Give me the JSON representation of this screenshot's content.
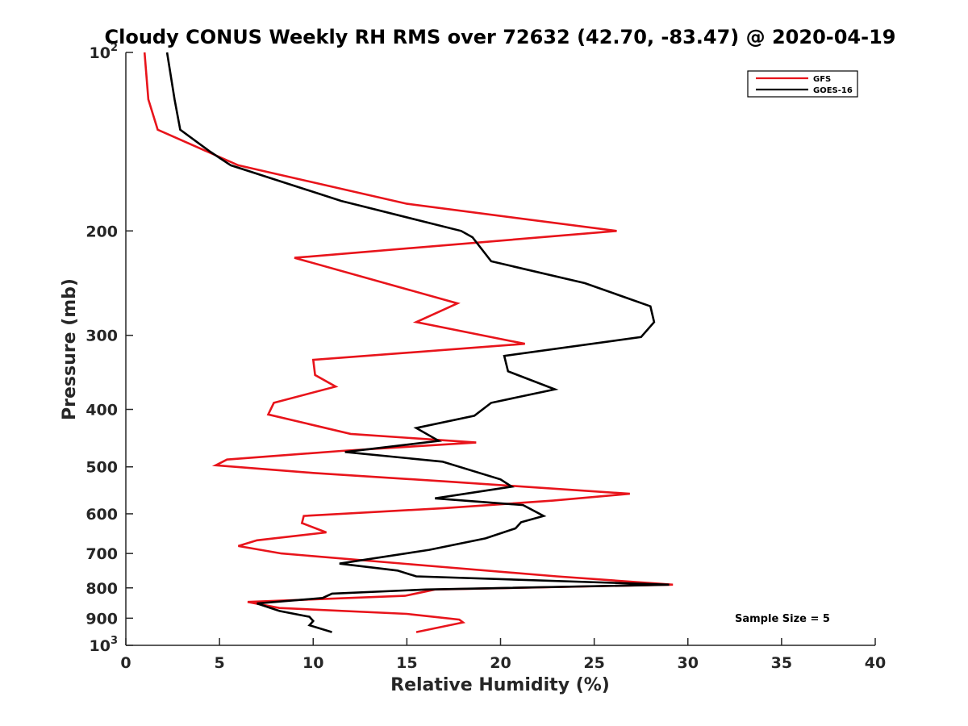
{
  "chart_data": {
    "type": "line",
    "title": "Cloudy CONUS Weekly RH RMS over 72632 (42.70, -83.47) @ 2020-04-19",
    "xlabel": "Relative Humidity (%)",
    "ylabel": "Pressure (mb)",
    "xlim": [
      0,
      40
    ],
    "ylim": [
      100,
      1000
    ],
    "y_scale": "log",
    "y_reversed": true,
    "grid": false,
    "legend_position": "top-right",
    "x_ticks": [
      {
        "value": 0,
        "label": "0"
      },
      {
        "value": 5,
        "label": "5"
      },
      {
        "value": 10,
        "label": "10"
      },
      {
        "value": 15,
        "label": "15"
      },
      {
        "value": 20,
        "label": "20"
      },
      {
        "value": 25,
        "label": "25"
      },
      {
        "value": 30,
        "label": "30"
      },
      {
        "value": 35,
        "label": "35"
      },
      {
        "value": 40,
        "label": "40"
      }
    ],
    "y_ticks": [
      {
        "value": 100,
        "label": "10",
        "sup": "2"
      },
      {
        "value": 200,
        "label": "200",
        "sup": ""
      },
      {
        "value": 300,
        "label": "300",
        "sup": ""
      },
      {
        "value": 400,
        "label": "400",
        "sup": ""
      },
      {
        "value": 500,
        "label": "500",
        "sup": ""
      },
      {
        "value": 600,
        "label": "600",
        "sup": ""
      },
      {
        "value": 700,
        "label": "700",
        "sup": ""
      },
      {
        "value": 800,
        "label": "800",
        "sup": ""
      },
      {
        "value": 900,
        "label": "900",
        "sup": ""
      },
      {
        "value": 1000,
        "label": "10",
        "sup": "3"
      }
    ],
    "series": [
      {
        "name": "GFS",
        "color": "#e8141b",
        "points": [
          [
            1.0,
            100
          ],
          [
            1.2,
            120
          ],
          [
            1.7,
            135
          ],
          [
            6.0,
            155
          ],
          [
            15.0,
            180
          ],
          [
            26.2,
            200
          ],
          [
            9.0,
            222
          ],
          [
            17.7,
            265
          ],
          [
            15.5,
            285
          ],
          [
            21.3,
            310
          ],
          [
            10.0,
            330
          ],
          [
            10.1,
            350
          ],
          [
            11.2,
            366
          ],
          [
            7.9,
            390
          ],
          [
            7.6,
            408
          ],
          [
            12.0,
            440
          ],
          [
            18.7,
            455
          ],
          [
            11.5,
            470
          ],
          [
            5.4,
            486
          ],
          [
            4.8,
            497
          ],
          [
            10.0,
            512
          ],
          [
            17.4,
            530
          ],
          [
            26.9,
            555
          ],
          [
            22.8,
            570
          ],
          [
            17.0,
            587
          ],
          [
            9.5,
            605
          ],
          [
            9.4,
            622
          ],
          [
            10.7,
            645
          ],
          [
            7.0,
            665
          ],
          [
            6.0,
            680
          ],
          [
            8.3,
            700
          ],
          [
            17.0,
            738
          ],
          [
            23.0,
            765
          ],
          [
            29.2,
            790
          ],
          [
            16.5,
            805
          ],
          [
            14.9,
            825
          ],
          [
            6.5,
            845
          ],
          [
            8.2,
            865
          ],
          [
            15.0,
            885
          ],
          [
            17.8,
            905
          ],
          [
            18.0,
            915
          ],
          [
            15.5,
            950
          ]
        ]
      },
      {
        "name": "GOES-16",
        "color": "#000000",
        "points": [
          [
            2.2,
            100
          ],
          [
            2.6,
            120
          ],
          [
            2.9,
            135
          ],
          [
            4.5,
            147
          ],
          [
            5.6,
            155
          ],
          [
            11.5,
            178
          ],
          [
            17.9,
            200
          ],
          [
            18.5,
            205
          ],
          [
            19.5,
            225
          ],
          [
            24.5,
            245
          ],
          [
            28.0,
            268
          ],
          [
            28.2,
            285
          ],
          [
            27.5,
            302
          ],
          [
            20.2,
            325
          ],
          [
            20.4,
            345
          ],
          [
            22.9,
            370
          ],
          [
            19.5,
            390
          ],
          [
            18.6,
            410
          ],
          [
            15.5,
            430
          ],
          [
            16.7,
            452
          ],
          [
            11.7,
            472
          ],
          [
            16.9,
            490
          ],
          [
            20.0,
            525
          ],
          [
            20.6,
            540
          ],
          [
            16.5,
            565
          ],
          [
            21.2,
            580
          ],
          [
            22.3,
            605
          ],
          [
            21.1,
            620
          ],
          [
            20.8,
            635
          ],
          [
            19.2,
            660
          ],
          [
            16.2,
            690
          ],
          [
            11.4,
            728
          ],
          [
            14.5,
            748
          ],
          [
            15.5,
            765
          ],
          [
            29.0,
            790
          ],
          [
            16.0,
            805
          ],
          [
            11.0,
            818
          ],
          [
            10.5,
            832
          ],
          [
            7.0,
            850
          ],
          [
            8.2,
            875
          ],
          [
            9.8,
            895
          ],
          [
            10.0,
            910
          ],
          [
            9.8,
            925
          ],
          [
            11.0,
            950
          ]
        ]
      }
    ],
    "legend": [
      "GFS",
      "GOES-16"
    ],
    "annotations": [
      "Sample Size = 5"
    ]
  }
}
